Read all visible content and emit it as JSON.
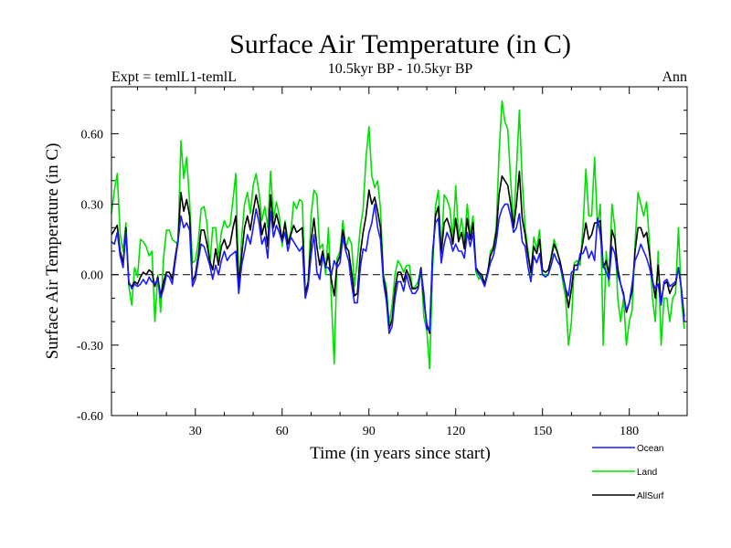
{
  "chart_data": {
    "type": "line",
    "title": "Surface Air Temperature (in C)",
    "subtitle": "10.5kyr BP - 10.5kyr BP",
    "left_annotation": "Expt = temlL1-temlL",
    "right_annotation": "Ann",
    "xlabel": "Time (in years since start)",
    "ylabel": "Surface Air Temperature (in C)",
    "xlim": [
      1,
      200
    ],
    "ylim": [
      -0.6,
      0.8
    ],
    "x_ticks": [
      30,
      60,
      90,
      120,
      150,
      180
    ],
    "y_ticks": [
      -0.6,
      -0.3,
      0.0,
      0.3,
      0.6
    ],
    "y_tick_labels": [
      "-0.60",
      "-0.30",
      "0.00",
      "0.30",
      "0.60"
    ],
    "zero_line": true,
    "legend_position": "bottom-right",
    "x_start": 1,
    "x_step": 1,
    "series": [
      {
        "name": "Ocean",
        "color": "#1a1aff",
        "values": [
          0.14,
          0.13,
          0.18,
          0.08,
          0.03,
          0.18,
          -0.03,
          -0.06,
          -0.04,
          -0.05,
          -0.04,
          -0.02,
          -0.04,
          -0.01,
          -0.03,
          -0.04,
          -0.02,
          -0.1,
          -0.06,
          0.0,
          -0.01,
          -0.04,
          0.05,
          0.14,
          0.25,
          0.2,
          0.22,
          0.19,
          -0.05,
          -0.02,
          0.06,
          0.13,
          0.12,
          0.08,
          0.04,
          -0.02,
          0.04,
          0.0,
          0.06,
          0.1,
          0.06,
          0.08,
          0.09,
          0.1,
          -0.08,
          0.04,
          0.1,
          0.17,
          0.13,
          0.2,
          0.28,
          0.22,
          0.13,
          0.16,
          0.07,
          0.27,
          0.16,
          0.21,
          0.18,
          0.14,
          0.18,
          0.1,
          0.16,
          0.14,
          0.12,
          0.1,
          0.12,
          -0.1,
          -0.05,
          0.08,
          0.17,
          0.01,
          -0.02,
          0.08,
          0.03,
          0.03,
          0.0,
          0.06,
          0.03,
          0.05,
          0.16,
          0.1,
          0.06,
          -0.04,
          -0.12,
          -0.12,
          0.03,
          0.11,
          0.1,
          0.18,
          0.22,
          0.3,
          0.2,
          0.15,
          -0.03,
          -0.11,
          -0.25,
          -0.22,
          -0.1,
          -0.03,
          -0.03,
          -0.07,
          0.0,
          -0.05,
          -0.08,
          -0.08,
          -0.06,
          0.02,
          -0.08,
          -0.23,
          -0.24,
          0.1,
          0.22,
          0.24,
          0.05,
          0.13,
          0.18,
          0.15,
          0.1,
          0.13,
          0.1,
          0.1,
          0.07,
          0.18,
          0.12,
          0.18,
          0.02,
          0.0,
          -0.02,
          -0.05,
          0.0,
          0.05,
          0.08,
          0.14,
          0.24,
          0.28,
          0.3,
          0.3,
          0.25,
          0.18,
          0.2,
          0.26,
          0.14,
          0.12,
          0.03,
          -0.03,
          0.08,
          0.05,
          0.09,
          0.0,
          -0.01,
          0.0,
          0.04,
          0.09,
          0.06,
          0.04,
          -0.01,
          -0.06,
          -0.09,
          0.01,
          0.02,
          0.02,
          0.09,
          0.09,
          0.12,
          0.07,
          0.1,
          0.06,
          0.24,
          0.17,
          0.04,
          0.01,
          -0.02,
          0.12,
          0.09,
          0.0,
          -0.04,
          -0.09,
          -0.15,
          -0.12,
          -0.04,
          0.06,
          0.09,
          0.13,
          0.1,
          0.07,
          0.03,
          -0.03,
          -0.06,
          -0.04,
          -0.13,
          -0.03,
          -0.02,
          -0.05,
          -0.04,
          -0.03,
          0.03,
          -0.06,
          -0.2
        ]
      },
      {
        "name": "Land",
        "color": "#00e000",
        "values": [
          0.26,
          0.36,
          0.43,
          0.17,
          0.1,
          0.22,
          -0.05,
          -0.13,
          0.03,
          -0.01,
          0.15,
          0.14,
          0.12,
          0.08,
          0.1,
          -0.2,
          0.0,
          -0.16,
          0.07,
          0.19,
          0.19,
          0.15,
          0.14,
          0.13,
          0.57,
          0.41,
          0.5,
          0.31,
          0.05,
          0.06,
          0.14,
          0.28,
          0.29,
          0.22,
          0.04,
          0.2,
          0.2,
          0.07,
          0.18,
          0.23,
          0.2,
          0.21,
          0.32,
          0.43,
          -0.06,
          0.16,
          0.3,
          0.35,
          0.26,
          0.38,
          0.43,
          0.35,
          0.23,
          0.29,
          0.2,
          0.44,
          0.24,
          0.31,
          0.25,
          0.12,
          0.23,
          0.14,
          0.18,
          0.31,
          0.28,
          0.32,
          0.31,
          -0.1,
          -0.04,
          0.25,
          0.36,
          0.34,
          0.11,
          0.13,
          0.0,
          0.2,
          -0.1,
          -0.38,
          0.07,
          0.1,
          0.23,
          0.11,
          0.16,
          0.13,
          -0.05,
          0.06,
          0.2,
          0.28,
          0.5,
          0.63,
          0.42,
          0.37,
          0.4,
          0.28,
          0.0,
          -0.05,
          -0.21,
          -0.13,
          0.0,
          0.06,
          0.04,
          0.01,
          0.04,
          0.04,
          -0.06,
          -0.05,
          -0.03,
          0.03,
          -0.18,
          -0.24,
          -0.4,
          0.02,
          0.29,
          0.36,
          0.1,
          0.34,
          0.32,
          0.28,
          0.15,
          0.38,
          0.16,
          0.24,
          0.14,
          0.3,
          0.17,
          0.25,
          0.01,
          -0.02,
          0.0,
          -0.04,
          0.0,
          0.1,
          0.12,
          0.2,
          0.52,
          0.74,
          0.65,
          0.62,
          0.4,
          0.2,
          0.45,
          0.7,
          0.4,
          0.2,
          0.1,
          0.0,
          0.16,
          0.11,
          0.19,
          0.0,
          0.0,
          0.0,
          0.08,
          0.15,
          0.11,
          0.05,
          -0.03,
          -0.1,
          -0.3,
          -0.2,
          0.05,
          0.06,
          0.04,
          0.2,
          0.45,
          0.25,
          0.25,
          0.5,
          0.2,
          0.3,
          -0.3,
          0.1,
          -0.05,
          0.3,
          0.2,
          -0.1,
          -0.2,
          -0.1,
          -0.3,
          -0.2,
          -0.15,
          0.13,
          0.35,
          0.3,
          0.25,
          0.31,
          0.13,
          -0.1,
          -0.2,
          0.1,
          -0.3,
          -0.1,
          -0.1,
          -0.2,
          -0.1,
          -0.08,
          0.2,
          -0.1,
          -0.23
        ]
      },
      {
        "name": "AllSurf",
        "color": "#000000",
        "values": [
          0.17,
          0.19,
          0.21,
          0.1,
          0.05,
          0.2,
          -0.04,
          -0.05,
          -0.03,
          -0.04,
          -0.01,
          0.01,
          -0.0,
          0.02,
          0.01,
          -0.05,
          -0.01,
          -0.09,
          -0.03,
          0.01,
          0.01,
          -0.02,
          0.07,
          0.15,
          0.35,
          0.27,
          0.32,
          0.25,
          -0.03,
          -0.0,
          0.08,
          0.19,
          0.19,
          0.13,
          0.06,
          0.02,
          0.11,
          0.04,
          0.12,
          0.15,
          0.11,
          0.13,
          0.2,
          0.25,
          -0.04,
          0.08,
          0.2,
          0.25,
          0.19,
          0.27,
          0.34,
          0.28,
          0.17,
          0.22,
          0.12,
          0.34,
          0.2,
          0.26,
          0.21,
          0.15,
          0.22,
          0.13,
          0.17,
          0.21,
          0.18,
          0.19,
          0.2,
          -0.08,
          -0.03,
          0.14,
          0.24,
          0.12,
          0.04,
          0.1,
          0.03,
          0.09,
          -0.02,
          -0.09,
          0.05,
          0.08,
          0.19,
          0.12,
          0.1,
          0.01,
          -0.09,
          -0.08,
          0.09,
          0.18,
          0.25,
          0.36,
          0.3,
          0.33,
          0.27,
          0.2,
          -0.01,
          -0.08,
          -0.23,
          -0.19,
          -0.06,
          0.01,
          0.01,
          -0.03,
          0.02,
          -0.01,
          -0.06,
          -0.06,
          -0.05,
          0.03,
          -0.11,
          -0.21,
          -0.25,
          0.08,
          0.25,
          0.29,
          0.09,
          0.22,
          0.24,
          0.2,
          0.13,
          0.24,
          0.14,
          0.18,
          0.11,
          0.24,
          0.15,
          0.22,
          0.03,
          0.01,
          -0.0,
          -0.04,
          0.01,
          0.08,
          0.11,
          0.18,
          0.34,
          0.42,
          0.4,
          0.38,
          0.3,
          0.2,
          0.3,
          0.44,
          0.24,
          0.17,
          0.08,
          0.01,
          0.12,
          0.09,
          0.15,
          0.02,
          0.01,
          0.02,
          0.07,
          0.13,
          0.1,
          0.06,
          0.0,
          -0.06,
          -0.14,
          -0.06,
          0.04,
          0.04,
          0.07,
          0.14,
          0.22,
          0.15,
          0.17,
          0.22,
          0.22,
          0.23,
          0.03,
          0.06,
          0.0,
          0.19,
          0.15,
          0.03,
          -0.04,
          -0.08,
          -0.16,
          -0.12,
          -0.07,
          0.1,
          0.2,
          0.2,
          0.16,
          0.18,
          0.09,
          -0.02,
          -0.1,
          0.04,
          -0.12,
          -0.04,
          -0.03,
          -0.08,
          -0.05,
          -0.04,
          0.03,
          -0.06,
          -0.18
        ]
      }
    ]
  }
}
